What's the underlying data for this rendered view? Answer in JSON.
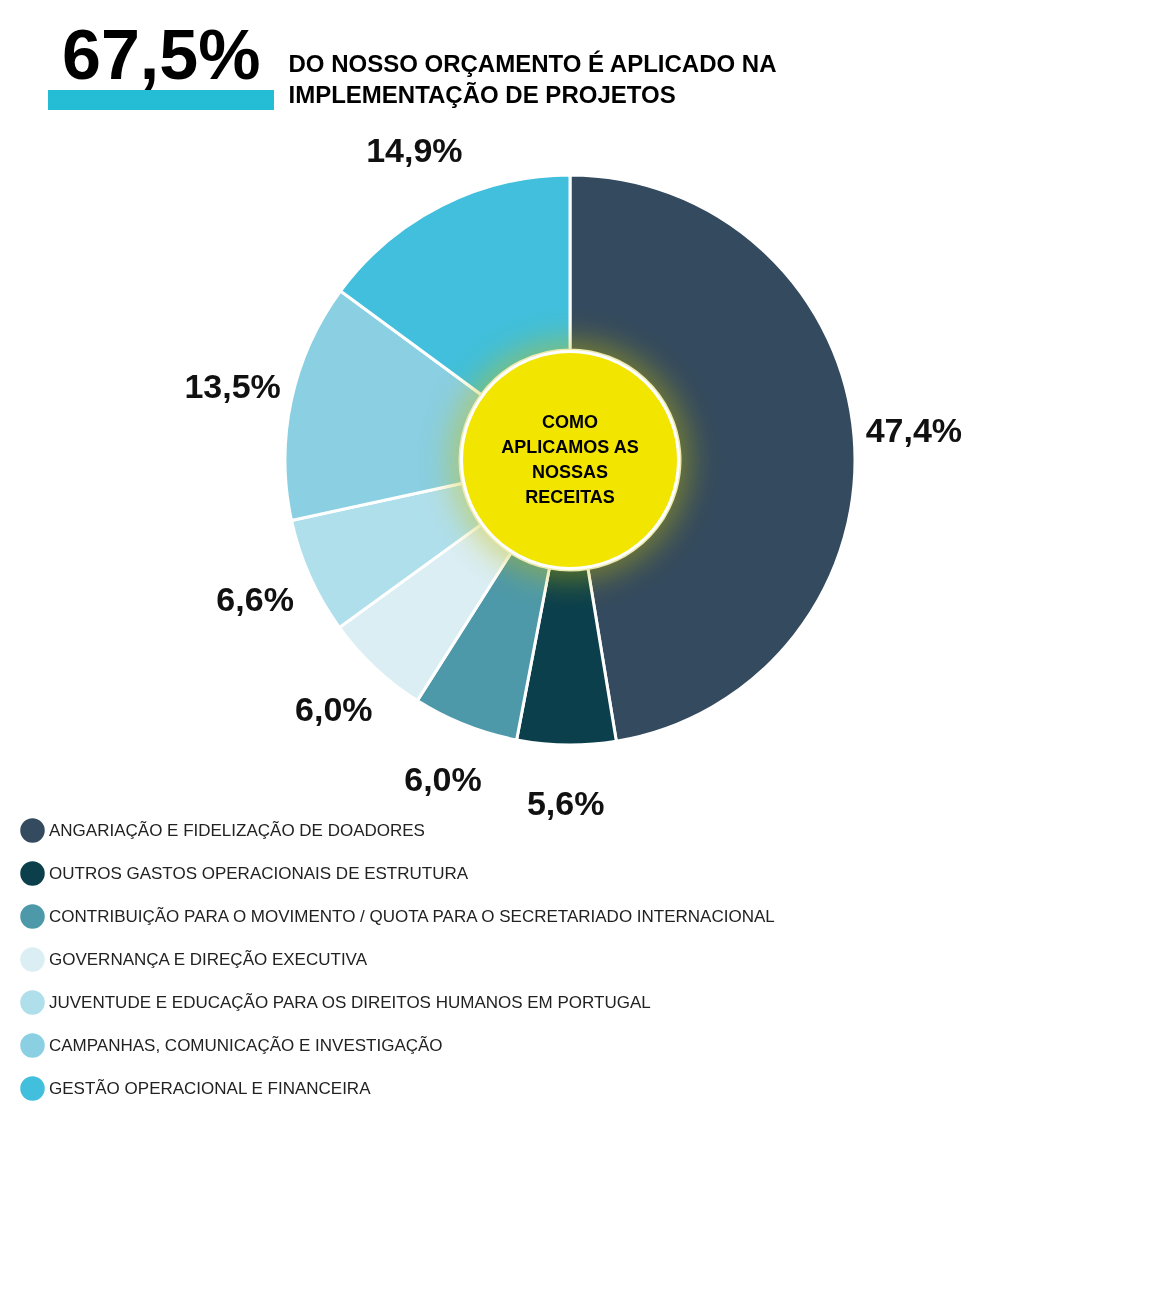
{
  "chart_data": {
    "type": "donut",
    "title": "67,5%",
    "subtitle": "DO NOSSO ORÇAMENTO É APLICADO NA IMPLEMENTAÇÃO DE PROJETOS",
    "categories": [
      "ANGARIAÇÃO E FIDELIZAÇÃO DE DOADORES",
      "OUTROS GASTOS OPERACIONAIS DE ESTRUTURA",
      "CONTRIBUIÇÃO PARA O MOVIMENTO / QUOTA PARA O SECRETARIADO INTERNACIONAL",
      "GOVERNANÇA E DIREÇÃO EXECUTIVA",
      "JUVENTUDE E EDUCAÇÃO PARA OS DIREITOS HUMANOS EM PORTUGAL",
      "CAMPANHAS, COMUNICAÇÃO E INVESTIGAÇÃO",
      "GESTÃO OPERACIONAL E FINANCEIRA"
    ],
    "values": [
      47.4,
      5.6,
      6.0,
      6.0,
      6.6,
      13.5,
      14.9
    ],
    "value_labels": [
      "47,4%",
      "5,6%",
      "6,0%",
      "6,0%",
      "6,6%",
      "13,5%",
      "14,9%"
    ],
    "colors": [
      "#344a5e",
      "#0b3f4c",
      "#4e99a9",
      "#daeef4",
      "#b0dfec",
      "#8acfe2",
      "#41bfdc"
    ],
    "annotations": [
      "COMO APLICAMOS AS NOSSAS RECEITAS"
    ],
    "legend": "bottom"
  }
}
